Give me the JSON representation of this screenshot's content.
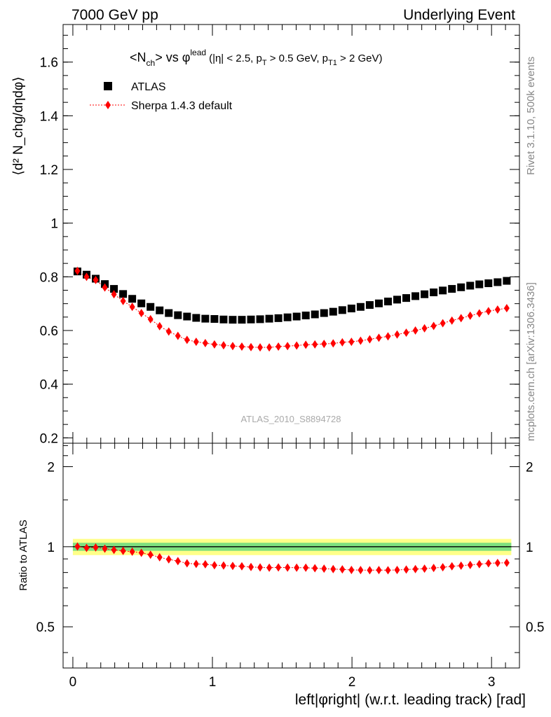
{
  "header": {
    "left": "7000 GeV pp",
    "right": "Underlying Event"
  },
  "side_text": {
    "rivet": "Rivet 3.1.10,  500k events",
    "mcplots": "mcplots.cern.ch [arXiv:1306.3436]"
  },
  "chart_data": [
    {
      "type": "scatter",
      "title_parts": {
        "main": "<N",
        "sub1": "ch",
        "mid": "> vs φ",
        "sup": "lead",
        "cuts_a": "(|η| < 2.5, p",
        "cuts_sub_a": "T",
        "cuts_b": " > 0.5 GeV, p",
        "cuts_sub_b": "T1",
        "cuts_c": " > 2 GeV)"
      },
      "ylabel": "⟨d² N_chg/dηdφ⟩",
      "watermark": "ATLAS_2010_S8894728",
      "xlim": [
        -0.07,
        3.2
      ],
      "ylim": [
        0.18,
        1.74
      ],
      "yticks": [
        0.2,
        0.4,
        0.6,
        0.8,
        1,
        1.2,
        1.4,
        1.6
      ],
      "ytick_labels": [
        "0.2",
        "0.4",
        "0.6",
        "0.8",
        "1",
        "1.2",
        "1.4",
        "1.6"
      ],
      "legend_position": "top-left",
      "x": [
        0.0327,
        0.0982,
        0.1636,
        0.2291,
        0.2945,
        0.36,
        0.4254,
        0.4909,
        0.5563,
        0.6218,
        0.6872,
        0.7527,
        0.8181,
        0.8836,
        0.949,
        1.0145,
        1.0799,
        1.1454,
        1.2108,
        1.2763,
        1.3417,
        1.4072,
        1.4726,
        1.5381,
        1.6035,
        1.669,
        1.7344,
        1.7999,
        1.8653,
        1.9308,
        1.9962,
        2.0617,
        2.1271,
        2.1926,
        2.258,
        2.3235,
        2.3889,
        2.4544,
        2.5198,
        2.5853,
        2.6507,
        2.7162,
        2.7816,
        2.8471,
        2.9125,
        2.978,
        3.0434,
        3.1089
      ],
      "series": [
        {
          "name": "ATLAS",
          "color": "#000000",
          "marker": "square",
          "values": [
            0.82,
            0.808,
            0.793,
            0.773,
            0.755,
            0.736,
            0.718,
            0.701,
            0.688,
            0.675,
            0.665,
            0.657,
            0.652,
            0.647,
            0.644,
            0.643,
            0.641,
            0.64,
            0.64,
            0.641,
            0.642,
            0.644,
            0.646,
            0.649,
            0.652,
            0.656,
            0.66,
            0.665,
            0.67,
            0.676,
            0.682,
            0.688,
            0.695,
            0.701,
            0.708,
            0.715,
            0.721,
            0.728,
            0.735,
            0.742,
            0.749,
            0.755,
            0.761,
            0.767,
            0.772,
            0.776,
            0.78,
            0.785
          ]
        },
        {
          "name": "Sherpa 1.4.3 default",
          "color": "#ff0000",
          "marker": "diamond",
          "values": [
            0.822,
            0.8,
            0.788,
            0.76,
            0.735,
            0.71,
            0.688,
            0.665,
            0.642,
            0.616,
            0.596,
            0.58,
            0.565,
            0.558,
            0.553,
            0.548,
            0.545,
            0.542,
            0.54,
            0.538,
            0.537,
            0.537,
            0.54,
            0.542,
            0.544,
            0.547,
            0.548,
            0.55,
            0.552,
            0.556,
            0.558,
            0.562,
            0.567,
            0.573,
            0.578,
            0.585,
            0.592,
            0.6,
            0.608,
            0.617,
            0.627,
            0.637,
            0.646,
            0.655,
            0.664,
            0.672,
            0.678,
            0.683
          ]
        }
      ]
    },
    {
      "type": "scatter",
      "ylabel": "Ratio to ATLAS",
      "xlabel": "left|φright| (w.r.t. leading track) [rad]",
      "xlim": [
        -0.07,
        3.2
      ],
      "xticks": [
        0,
        1,
        2,
        3
      ],
      "xtick_labels": [
        "0",
        "1",
        "2",
        "3"
      ],
      "ylim": [
        0.35,
        2.45
      ],
      "log_y": true,
      "yticks": [
        0.5,
        1,
        2
      ],
      "ytick_labels": [
        "0.5",
        "1",
        "2"
      ],
      "reference_band": {
        "green_halfwidth": 0.035,
        "yellow_halfwidth": 0.07,
        "green_color": "#7fe07f",
        "yellow_color": "#ffff88"
      },
      "series": [
        {
          "name": "Sherpa 1.4.3 default",
          "color": "#ff0000",
          "values": [
            1.002,
            0.99,
            0.994,
            0.983,
            0.973,
            0.965,
            0.958,
            0.949,
            0.933,
            0.913,
            0.896,
            0.883,
            0.866,
            0.862,
            0.859,
            0.852,
            0.85,
            0.847,
            0.844,
            0.839,
            0.836,
            0.834,
            0.836,
            0.835,
            0.834,
            0.834,
            0.83,
            0.827,
            0.824,
            0.822,
            0.818,
            0.817,
            0.816,
            0.817,
            0.816,
            0.818,
            0.821,
            0.824,
            0.827,
            0.832,
            0.837,
            0.844,
            0.849,
            0.854,
            0.86,
            0.866,
            0.869,
            0.87
          ]
        }
      ]
    }
  ],
  "legend": {
    "items": [
      "ATLAS",
      "Sherpa 1.4.3 default"
    ]
  }
}
